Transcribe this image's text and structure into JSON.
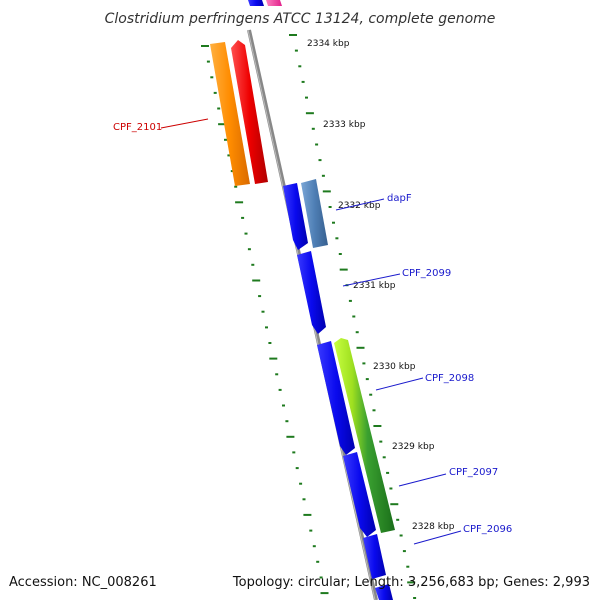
{
  "title": "Clostridium perfringens ATCC 13124, complete genome",
  "accession": "Accession: NC_008261",
  "summary": "Topology: circular; Length: 3,256,683 bp; Genes: 2,993",
  "colors": {
    "backbone": "#888888",
    "tick": "#1e7a1e",
    "label_red": "#cc0000",
    "label_blue": "#1a1acc"
  },
  "kbp_labels": [
    "2334 kbp",
    "2333 kbp",
    "2332 kbp",
    "2331 kbp",
    "2330 kbp",
    "2329 kbp",
    "2328 kbp"
  ],
  "genes": [
    {
      "label": "CPF_2101",
      "color": "#cc0000"
    },
    {
      "label": "dapF",
      "color": "#1a1acc"
    },
    {
      "label": "CPF_2099",
      "color": "#1a1acc"
    },
    {
      "label": "CPF_2098",
      "color": "#1a1acc"
    },
    {
      "label": "CPF_2097",
      "color": "#1a1acc"
    },
    {
      "label": "CPF_2096",
      "color": "#1a1acc"
    }
  ]
}
